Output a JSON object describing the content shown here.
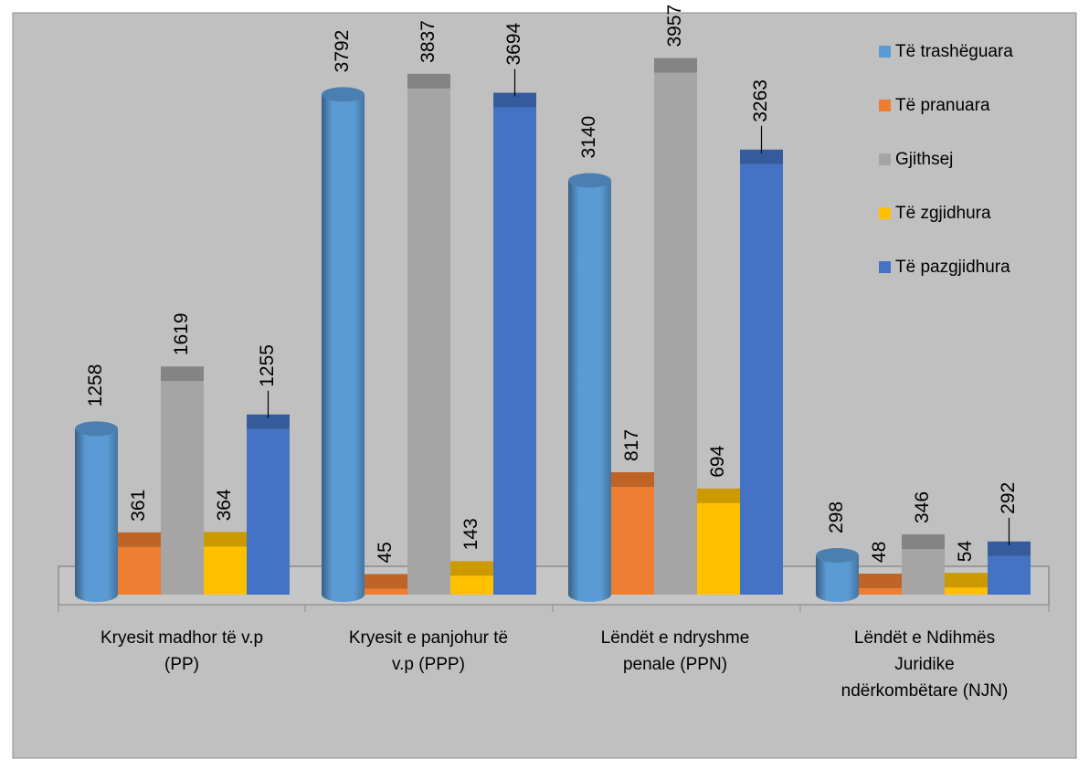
{
  "chart_data": {
    "type": "bar",
    "categories": [
      "Kryesit madhor të v.p (PP)",
      "Kryesit e panjohur të v.p (PPP)",
      "Lëndët e ndryshme penale (PPN)",
      "Lëndët e Ndihmës Juridike ndërkombëtare (NJN)"
    ],
    "category_lines": [
      [
        "Kryesit madhor të v.p",
        "(PP)"
      ],
      [
        "Kryesit e panjohur të",
        "v.p (PPP)"
      ],
      [
        "Lëndët e ndryshme",
        "penale (PPN)"
      ],
      [
        "Lëndët e Ndihmës",
        "Juridike",
        "ndërkombëtare (NJN)"
      ]
    ],
    "series": [
      {
        "name": "Të trashëguara",
        "color": "#5b9bd5",
        "shape": "cylinder",
        "values": [
          1258,
          3792,
          3140,
          298
        ],
        "labels": [
          "1258",
          "3792",
          "3140",
          "298"
        ]
      },
      {
        "name": "Të pranuara",
        "color": "#ed7d31",
        "shape": "box",
        "values": [
          361,
          45,
          817,
          48
        ],
        "labels": [
          "361",
          "45",
          "817",
          "48"
        ]
      },
      {
        "name": "Gjithsej",
        "color": "#a5a5a5",
        "shape": "box",
        "values": [
          1619,
          3837,
          3957,
          346
        ],
        "labels": [
          "1619",
          "3837",
          "3957",
          "346"
        ]
      },
      {
        "name": "Të zgjidhura",
        "color": "#ffc000",
        "shape": "box",
        "values": [
          364,
          143,
          694,
          54
        ],
        "labels": [
          "364",
          "143",
          "694",
          "54"
        ]
      },
      {
        "name": "Të pazgjidhura",
        "color": "#4472c4",
        "shape": "box",
        "values": [
          1255,
          3694,
          3263,
          292
        ],
        "labels": [
          "1255",
          "3694",
          "3263",
          "292"
        ]
      }
    ],
    "ylim": [
      0,
      4300
    ],
    "grid": false,
    "legend_position": "right",
    "background": "#c0c0c0"
  }
}
